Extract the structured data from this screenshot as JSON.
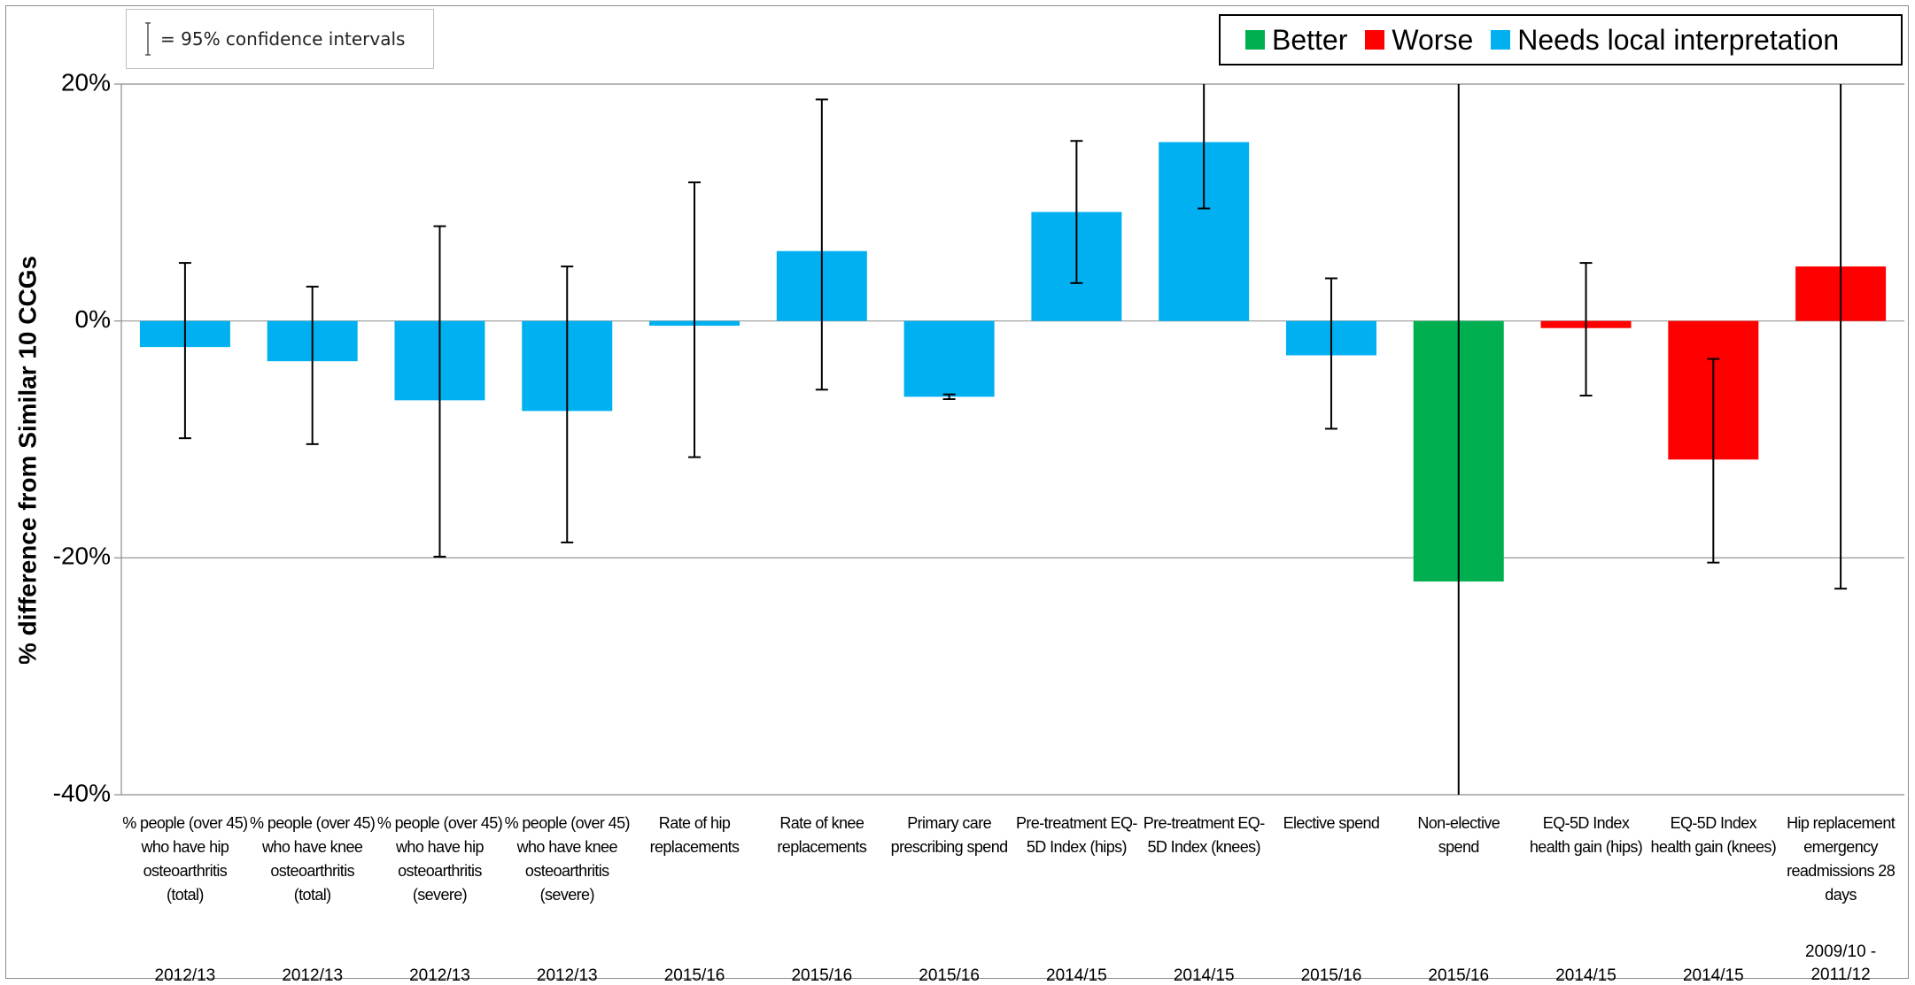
{
  "ci_note": {
    "text": "= 95% confidence intervals"
  },
  "legend": [
    {
      "label": "Better",
      "color": "#00b050"
    },
    {
      "label": "Worse",
      "color": "#ff0000"
    },
    {
      "label": "Needs local interpretation",
      "color": "#00b0f0"
    }
  ],
  "chart_data": {
    "type": "bar",
    "ylabel": "% difference from Similar 10 CCGs",
    "ylim": [
      -40,
      20
    ],
    "yticks": [
      20,
      0,
      -20,
      -40
    ],
    "ytick_labels": [
      "20%",
      "0%",
      "-20%",
      "-40%"
    ],
    "grid": true,
    "legend_position": "top-right",
    "colors": {
      "better": "#00b050",
      "worse": "#ff0000",
      "needs": "#00b0f0"
    },
    "categories": [
      "% people (over 45) who have hip osteoarthritis (total)",
      "% people (over 45) who have knee osteoarthritis (total)",
      "% people (over 45) who have hip osteoarthritis (severe)",
      "% people (over 45) who have knee osteoarthritis (severe)",
      "Rate of hip replacements",
      "Rate of knee replacements",
      "Primary care prescribing spend",
      "Pre-treatment EQ-5D Index (hips)",
      "Pre-treatment EQ-5D Index (knees)",
      "Elective spend",
      "Non-elective spend",
      "EQ-5D Index health gain (hips)",
      "EQ-5D Index health gain (knees)",
      "Hip replacement emergency readmissions 28 days"
    ],
    "category_lines": [
      [
        "% people (over 45)",
        "who have hip",
        "osteoarthritis",
        "(total)"
      ],
      [
        "% people (over 45)",
        "who have knee",
        "osteoarthritis",
        "(total)"
      ],
      [
        "% people (over 45)",
        "who have hip",
        "osteoarthritis",
        "(severe)"
      ],
      [
        "% people (over 45)",
        "who have knee",
        "osteoarthritis",
        "(severe)"
      ],
      [
        "Rate of hip",
        "replacements"
      ],
      [
        "Rate of knee",
        "replacements"
      ],
      [
        "Primary care",
        "prescribing spend"
      ],
      [
        "Pre-treatment EQ-",
        "5D Index (hips)"
      ],
      [
        "Pre-treatment EQ-",
        "5D Index (knees)"
      ],
      [
        "Elective spend"
      ],
      [
        "Non-elective",
        "spend"
      ],
      [
        "EQ-5D Index",
        "health gain (hips)"
      ],
      [
        "EQ-5D Index",
        "health gain (knees)"
      ],
      [
        "Hip replacement",
        "emergency",
        "readmissions 28",
        "days"
      ]
    ],
    "periods": [
      "2012/13",
      "2012/13",
      "2012/13",
      "2012/13",
      "2015/16",
      "2015/16",
      "2015/16",
      "2014/15",
      "2014/15",
      "2015/16",
      "2015/16",
      "2014/15",
      "2014/15",
      "2009/10 - 2011/12"
    ],
    "period_lines": [
      [
        "2012/13"
      ],
      [
        "2012/13"
      ],
      [
        "2012/13"
      ],
      [
        "2012/13"
      ],
      [
        "2015/16"
      ],
      [
        "2015/16"
      ],
      [
        "2015/16"
      ],
      [
        "2014/15"
      ],
      [
        "2014/15"
      ],
      [
        "2015/16"
      ],
      [
        "2015/16"
      ],
      [
        "2014/15"
      ],
      [
        "2014/15"
      ],
      [
        "2009/10 -",
        "2011/12"
      ]
    ],
    "values": [
      -2.2,
      -3.4,
      -6.7,
      -7.6,
      -0.4,
      5.9,
      -6.4,
      9.2,
      15.1,
      -2.9,
      -22.0,
      -0.6,
      -11.7,
      4.6
    ],
    "status": [
      "needs",
      "needs",
      "needs",
      "needs",
      "needs",
      "needs",
      "needs",
      "needs",
      "needs",
      "needs",
      "better",
      "worse",
      "worse",
      "worse"
    ],
    "ci_lower": [
      -9.9,
      -10.4,
      -19.9,
      -18.7,
      -11.5,
      -5.8,
      -6.6,
      3.2,
      9.5,
      -9.1,
      -40,
      -6.3,
      -20.4,
      -22.6
    ],
    "ci_upper": [
      4.9,
      2.9,
      8.0,
      4.6,
      11.7,
      18.7,
      -6.2,
      15.2,
      20,
      3.6,
      20,
      4.9,
      -3.2,
      20
    ]
  }
}
